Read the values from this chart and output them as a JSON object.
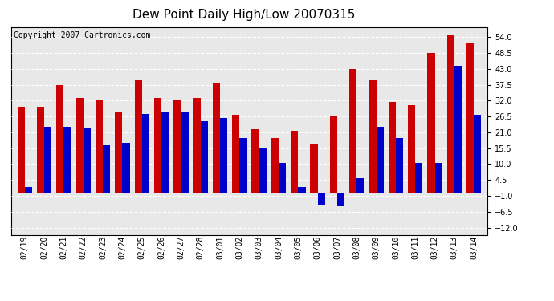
{
  "title": "Dew Point Daily High/Low 20070315",
  "copyright": "Copyright 2007 Cartronics.com",
  "dates": [
    "02/19",
    "02/20",
    "02/21",
    "02/22",
    "02/23",
    "02/24",
    "02/25",
    "02/26",
    "02/27",
    "02/28",
    "03/01",
    "03/02",
    "03/03",
    "03/04",
    "03/05",
    "03/06",
    "03/07",
    "03/08",
    "03/09",
    "03/10",
    "03/11",
    "03/12",
    "03/13",
    "03/14"
  ],
  "highs": [
    30.0,
    30.0,
    37.5,
    33.0,
    32.0,
    28.0,
    39.0,
    33.0,
    32.0,
    33.0,
    38.0,
    27.0,
    22.0,
    19.0,
    21.5,
    17.0,
    26.5,
    43.0,
    39.0,
    31.5,
    30.5,
    48.5,
    55.0,
    52.0
  ],
  "lows": [
    2.0,
    23.0,
    23.0,
    22.5,
    16.5,
    17.5,
    27.5,
    28.0,
    28.0,
    25.0,
    26.0,
    19.0,
    15.5,
    10.5,
    2.0,
    -4.0,
    -4.5,
    5.0,
    23.0,
    19.0,
    10.5,
    10.5,
    44.0,
    27.0
  ],
  "bar_color_high": "#cc0000",
  "bar_color_low": "#0000cc",
  "yticks": [
    -12.0,
    -6.5,
    -1.0,
    4.5,
    10.0,
    15.5,
    21.0,
    26.5,
    32.0,
    37.5,
    43.0,
    48.5,
    54.0
  ],
  "ymin": -14.5,
  "ymax": 57.5,
  "bg_color": "#ffffff",
  "plot_bg_color": "#e8e8e8",
  "grid_color": "#ffffff",
  "title_fontsize": 11,
  "tick_fontsize": 7,
  "copyright_fontsize": 7
}
